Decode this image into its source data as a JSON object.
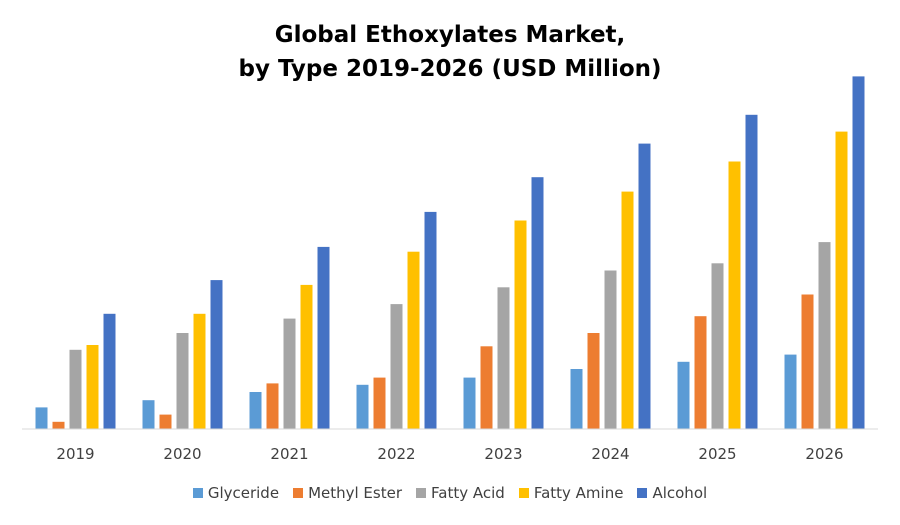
{
  "chart_data": {
    "type": "bar",
    "title": "Global Ethoxylates Market,",
    "subtitle": "by Type 2019-2026 (USD Million)",
    "xlabel": "",
    "ylabel": "",
    "categories": [
      "2019",
      "2020",
      "2021",
      "2022",
      "2023",
      "2024",
      "2025",
      "2026"
    ],
    "ylim": [
      0,
      100
    ],
    "grid": false,
    "legend_position": "bottom",
    "series": [
      {
        "name": "Glyceride",
        "color": "#5B9BD5",
        "values": [
          6.3,
          8.4,
          10.8,
          12.9,
          15.0,
          17.5,
          19.6,
          21.7
        ]
      },
      {
        "name": "Methyl Ester",
        "color": "#ED7D31",
        "values": [
          2.1,
          4.2,
          13.3,
          15.0,
          24.1,
          28.0,
          32.9,
          39.2
        ]
      },
      {
        "name": "Fatty Acid",
        "color": "#A5A5A5",
        "values": [
          23.1,
          28.0,
          32.2,
          36.4,
          41.3,
          46.2,
          48.3,
          54.5
        ]
      },
      {
        "name": "Fatty Amine",
        "color": "#FFC000",
        "values": [
          24.5,
          33.6,
          42.0,
          51.7,
          60.8,
          69.2,
          78.0,
          86.7
        ]
      },
      {
        "name": "Alcohol",
        "color": "#4472C4",
        "values": [
          33.6,
          43.4,
          53.1,
          63.3,
          73.4,
          83.2,
          91.6,
          102.8
        ]
      }
    ]
  }
}
